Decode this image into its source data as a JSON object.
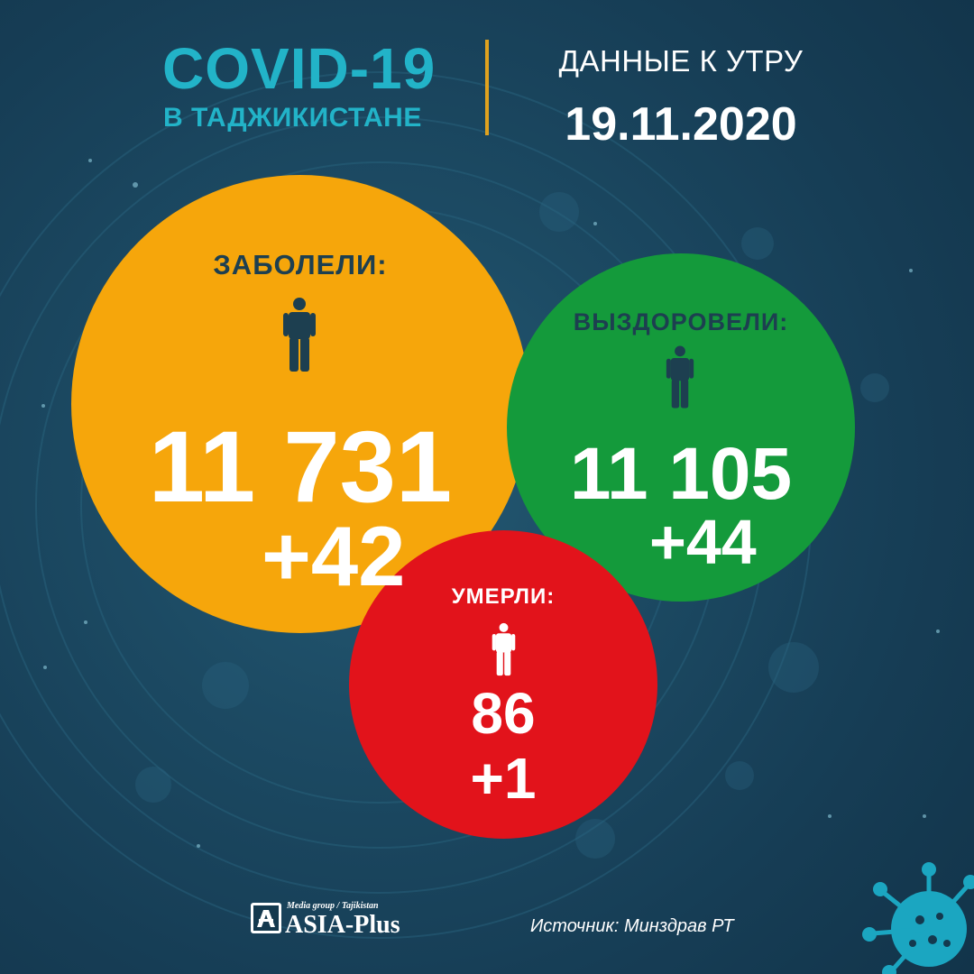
{
  "header": {
    "title": "COVID-19",
    "subtitle": "В ТАДЖИКИСТАНЕ",
    "morning_label": "ДАННЫЕ К УТРУ",
    "date": "19.11.2020"
  },
  "stats": {
    "infected": {
      "label": "ЗАБОЛЕЛИ:",
      "total": "11 731",
      "increase": "+42"
    },
    "recovered": {
      "label": "ВЫЗДОРОВЕЛИ:",
      "total": "11 105",
      "increase": "+44"
    },
    "deaths": {
      "label": "УМЕРЛИ:",
      "total": "86",
      "increase": "+1"
    }
  },
  "footer": {
    "logo_small": "Media group / Tajikistan",
    "logo_name": "ASIA-Plus",
    "source": "Источник: Минздрав РТ"
  },
  "colors": {
    "background": "#1c4a63",
    "accent_teal": "#22b3c8",
    "divider": "#e0a21e",
    "infected": "#f6a60b",
    "recovered": "#149a3b",
    "deaths": "#e2131b"
  },
  "icons": {
    "person": "person-icon",
    "virus": "virus-icon",
    "logo": "asia-plus-logo-icon"
  }
}
